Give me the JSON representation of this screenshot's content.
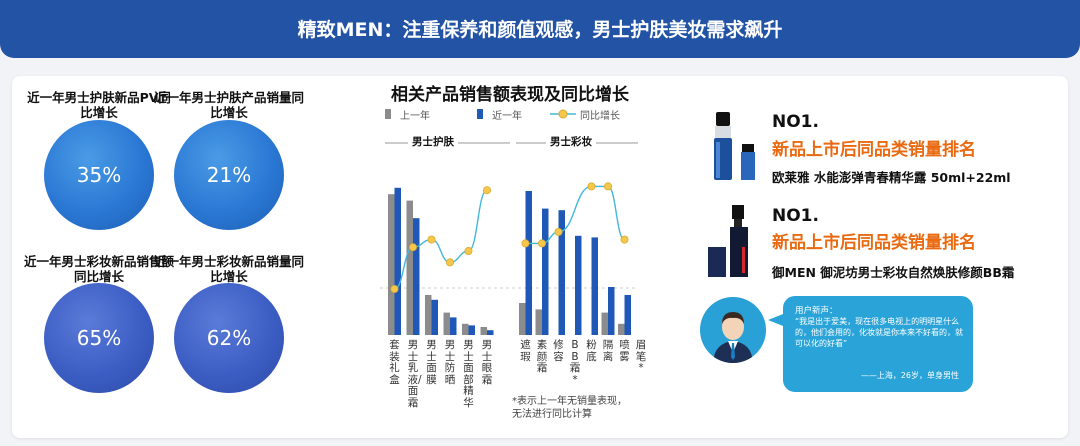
{
  "banner": {
    "title": "精致MEN：注重保养和颜值观感，男士护肤美妆需求飙升"
  },
  "kpis": [
    {
      "label": "近一年男士护肤新品PV同比增长",
      "value": "35%"
    },
    {
      "label": "近一年男士护肤产品销量同比增长",
      "value": "21%"
    },
    {
      "label": "近一年男士彩妆新品销售额同比增长",
      "value": "65%"
    },
    {
      "label": "近一年男士彩妆新品销量同比增长",
      "value": "62%"
    }
  ],
  "chart_data": {
    "type": "bar",
    "title": "相关产品销售额表现及同比增长",
    "legend": [
      "上一年",
      "近一年",
      "同比增长"
    ],
    "groups": [
      "男士护肤",
      "男士彩妆"
    ],
    "categories": [
      "套装礼盒",
      "男士乳液/面霜",
      "男士面膜",
      "男士防晒",
      "男士面部精华",
      "男士眼霜",
      "遮瑕",
      "素颜霜",
      "修容",
      "BB霜*",
      "粉底",
      "隔离",
      "喷雾",
      "眉笔*"
    ],
    "series": [
      {
        "name": "上一年",
        "values": [
          88,
          84,
          25,
          14,
          7,
          5,
          20,
          16,
          0,
          0,
          0,
          14,
          7,
          0
        ]
      },
      {
        "name": "近一年",
        "values": [
          92,
          73,
          22,
          11,
          6,
          3,
          90,
          79,
          78,
          62,
          61,
          30,
          25,
          2
        ]
      },
      {
        "name": "同比增长",
        "values": [
          5,
          16,
          18,
          12,
          15,
          31,
          17,
          17,
          20,
          null,
          32,
          32,
          18,
          null
        ]
      }
    ],
    "color_prev": "#8c8c8c",
    "color_curr": "#1f58b7",
    "color_growth": "#42b7dc",
    "footnote": [
      "*表示上一年无销量表现，",
      "无法进行同比计算"
    ]
  },
  "products": [
    {
      "rank": "NO1.",
      "subtitle": "新品上市后同品类销量排名",
      "name": "欧莱雅 水能澎弹青春精华露  50ml+22ml"
    },
    {
      "rank": "NO1.",
      "subtitle": "新品上市后同品类销量排名",
      "name": "御MEN  御泥坊男士彩妆自然焕肤修颜BB霜"
    }
  ],
  "quote": {
    "head": "用户新声：",
    "text": "“我是出于爱美，现在很多电视上的明明星什么的，他们会用的，化妆就是你本来不好看的，就可以化的好看”",
    "sign": "——上海，26岁，单身男性"
  },
  "colors": {
    "banner": "#2253a4",
    "accent": "#ea6a12"
  }
}
